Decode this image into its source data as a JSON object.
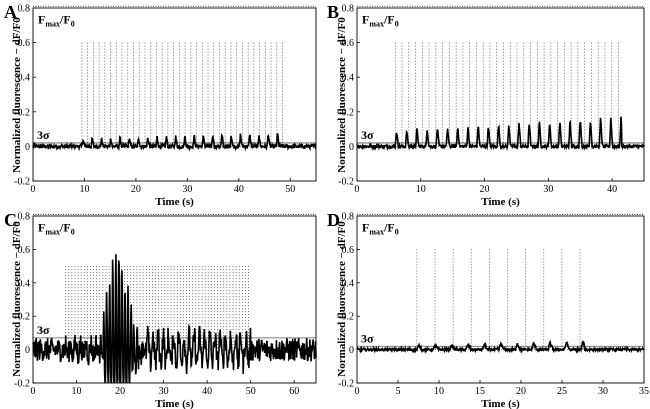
{
  "chart_data": [
    {
      "type": "line",
      "panel": "A",
      "xlabel": "Time (s)",
      "ylabel": "Normalized fluorescence − dF/F0",
      "xlim": [
        0,
        55
      ],
      "ylim": [
        -0.2,
        0.8
      ],
      "xticks": [
        0,
        10,
        20,
        30,
        40,
        50
      ],
      "yticks": [
        -0.2,
        0,
        0.2,
        0.4,
        0.6,
        0.8
      ],
      "fmax_label": "F",
      "fmax_sub1": "max",
      "fmax_mid": "/F",
      "fmax_sub2": "0",
      "fmax_value": 0.81,
      "sigma_label": "3σ",
      "sigma_value": 0.02,
      "stim_range": [
        9.5,
        48.5
      ],
      "stim_top": 0.6,
      "stim_count": 36,
      "peak_height": 0.06,
      "peak_interval": 1.8,
      "noise": 0.012,
      "trace_style": "peaks"
    },
    {
      "type": "line",
      "panel": "B",
      "xlabel": "Time (s)",
      "ylabel": "Normalized fluorescence − dF/F0",
      "xlim": [
        0,
        45
      ],
      "ylim": [
        -0.2,
        0.8
      ],
      "xticks": [
        0,
        10,
        20,
        30,
        40
      ],
      "yticks": [
        -0.2,
        0,
        0.2,
        0.4,
        0.6,
        0.8
      ],
      "fmax_label": "F",
      "fmax_sub1": "max",
      "fmax_mid": "/F",
      "fmax_sub2": "0",
      "fmax_value": 0.81,
      "sigma_label": "3σ",
      "sigma_value": 0.02,
      "stim_range": [
        6,
        41
      ],
      "stim_top": 0.6,
      "stim_count": 34,
      "peak_height": 0.13,
      "peak_interval": 1.6,
      "noise": 0.01,
      "trace_style": "peaks"
    },
    {
      "type": "line",
      "panel": "C",
      "xlabel": "Time (s)",
      "ylabel": "Normalized fluorescence − dF/F0",
      "xlim": [
        0,
        65
      ],
      "ylim": [
        -0.2,
        0.8
      ],
      "xticks": [
        0,
        10,
        20,
        30,
        40,
        50,
        60
      ],
      "yticks": [
        -0.2,
        0,
        0.2,
        0.4,
        0.6,
        0.8
      ],
      "fmax_label": "F",
      "fmax_sub1": "max",
      "fmax_mid": "/F",
      "fmax_sub2": "0",
      "fmax_value": 0.81,
      "sigma_label": "3σ",
      "sigma_value": 0.07,
      "stim_range": [
        7.5,
        49.5
      ],
      "stim_top": 0.5,
      "stim_count": 60,
      "peak_height": 0.55,
      "peak_interval": 0.7,
      "noise": 0.07,
      "trace_style": "burst"
    },
    {
      "type": "line",
      "panel": "D",
      "xlabel": "Time (s)",
      "ylabel": "Normalized fluorescence − dF/F0",
      "xlim": [
        0,
        35
      ],
      "ylim": [
        -0.2,
        0.8
      ],
      "xticks": [
        0,
        5,
        10,
        15,
        20,
        25,
        30,
        35
      ],
      "yticks": [
        -0.2,
        0,
        0.2,
        0.4,
        0.6,
        0.8
      ],
      "fmax_label": "F",
      "fmax_sub1": "max",
      "fmax_mid": "/F",
      "fmax_sub2": "0",
      "fmax_value": 0.81,
      "sigma_label": "3σ",
      "sigma_value": 0.02,
      "stim_range": [
        7.3,
        27.2
      ],
      "stim_top": 0.6,
      "stim_count": 10,
      "peak_height": 0.035,
      "peak_interval": 2.0,
      "noise": 0.008,
      "trace_style": "peaks"
    }
  ]
}
